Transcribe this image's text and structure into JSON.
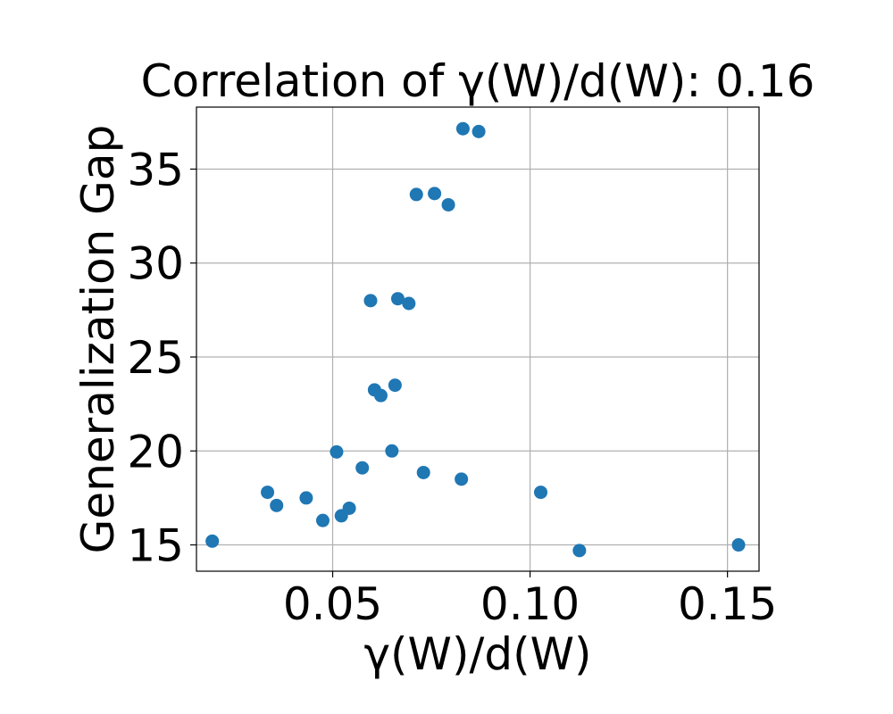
{
  "chart_data": {
    "type": "scatter",
    "title": "Correlation of γ(W)/d(W): 0.16",
    "xlabel": "γ(W)/d(W)",
    "ylabel": "Generalization Gap",
    "xlim": [
      0.0155,
      0.158
    ],
    "ylim": [
      13.6,
      38.3
    ],
    "xticks": [
      0.05,
      0.1,
      0.15
    ],
    "xtick_labels": [
      "0.05",
      "0.10",
      "0.15"
    ],
    "yticks": [
      15,
      20,
      25,
      30,
      35
    ],
    "ytick_labels": [
      "15",
      "20",
      "25",
      "30",
      "35"
    ],
    "grid": true,
    "color": "#1f77b4",
    "points": [
      {
        "x": 0.0195,
        "y": 15.2
      },
      {
        "x": 0.0335,
        "y": 17.8
      },
      {
        "x": 0.0358,
        "y": 17.1
      },
      {
        "x": 0.0433,
        "y": 17.5
      },
      {
        "x": 0.0475,
        "y": 16.3
      },
      {
        "x": 0.051,
        "y": 19.95
      },
      {
        "x": 0.0522,
        "y": 16.55
      },
      {
        "x": 0.0542,
        "y": 16.95
      },
      {
        "x": 0.0575,
        "y": 19.1
      },
      {
        "x": 0.0596,
        "y": 28.0
      },
      {
        "x": 0.0606,
        "y": 23.25
      },
      {
        "x": 0.0622,
        "y": 22.95
      },
      {
        "x": 0.065,
        "y": 20.0
      },
      {
        "x": 0.0658,
        "y": 23.5
      },
      {
        "x": 0.0665,
        "y": 28.1
      },
      {
        "x": 0.0693,
        "y": 27.85
      },
      {
        "x": 0.0712,
        "y": 33.65
      },
      {
        "x": 0.073,
        "y": 18.85
      },
      {
        "x": 0.0758,
        "y": 33.7
      },
      {
        "x": 0.0793,
        "y": 33.1
      },
      {
        "x": 0.0826,
        "y": 18.5
      },
      {
        "x": 0.083,
        "y": 37.15
      },
      {
        "x": 0.087,
        "y": 37.0
      },
      {
        "x": 0.1027,
        "y": 17.8
      },
      {
        "x": 0.1125,
        "y": 14.7
      },
      {
        "x": 0.1528,
        "y": 15.0
      }
    ]
  }
}
